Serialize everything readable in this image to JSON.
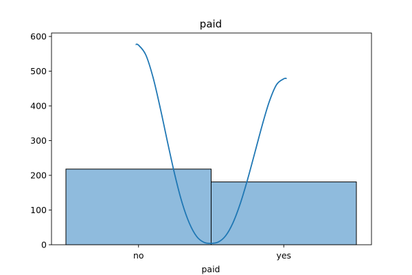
{
  "chart_data": {
    "type": "bar",
    "title": "paid",
    "xlabel": "paid",
    "ylabel": "",
    "categories": [
      "no",
      "yes"
    ],
    "values": [
      218,
      181
    ],
    "ylim": [
      0,
      610
    ],
    "yticks": [
      0,
      100,
      200,
      300,
      400,
      500,
      600
    ],
    "grid": false,
    "bar_color": "#8fbbdd",
    "bar_edge_color": "#000000",
    "kde": {
      "color": "#1f77b4",
      "x": [
        -0.02,
        0.0,
        0.05,
        0.1,
        0.15,
        0.2,
        0.25,
        0.3,
        0.35,
        0.4,
        0.45,
        0.5,
        0.55,
        0.6,
        0.65,
        0.7,
        0.75,
        0.8,
        0.85,
        0.9,
        0.95,
        1.0,
        1.02
      ],
      "y": [
        577,
        575,
        547,
        482,
        393,
        295,
        201,
        121,
        62,
        24,
        7,
        4,
        8,
        26,
        63,
        118,
        187,
        264,
        342,
        412,
        461,
        478,
        479
      ]
    }
  }
}
